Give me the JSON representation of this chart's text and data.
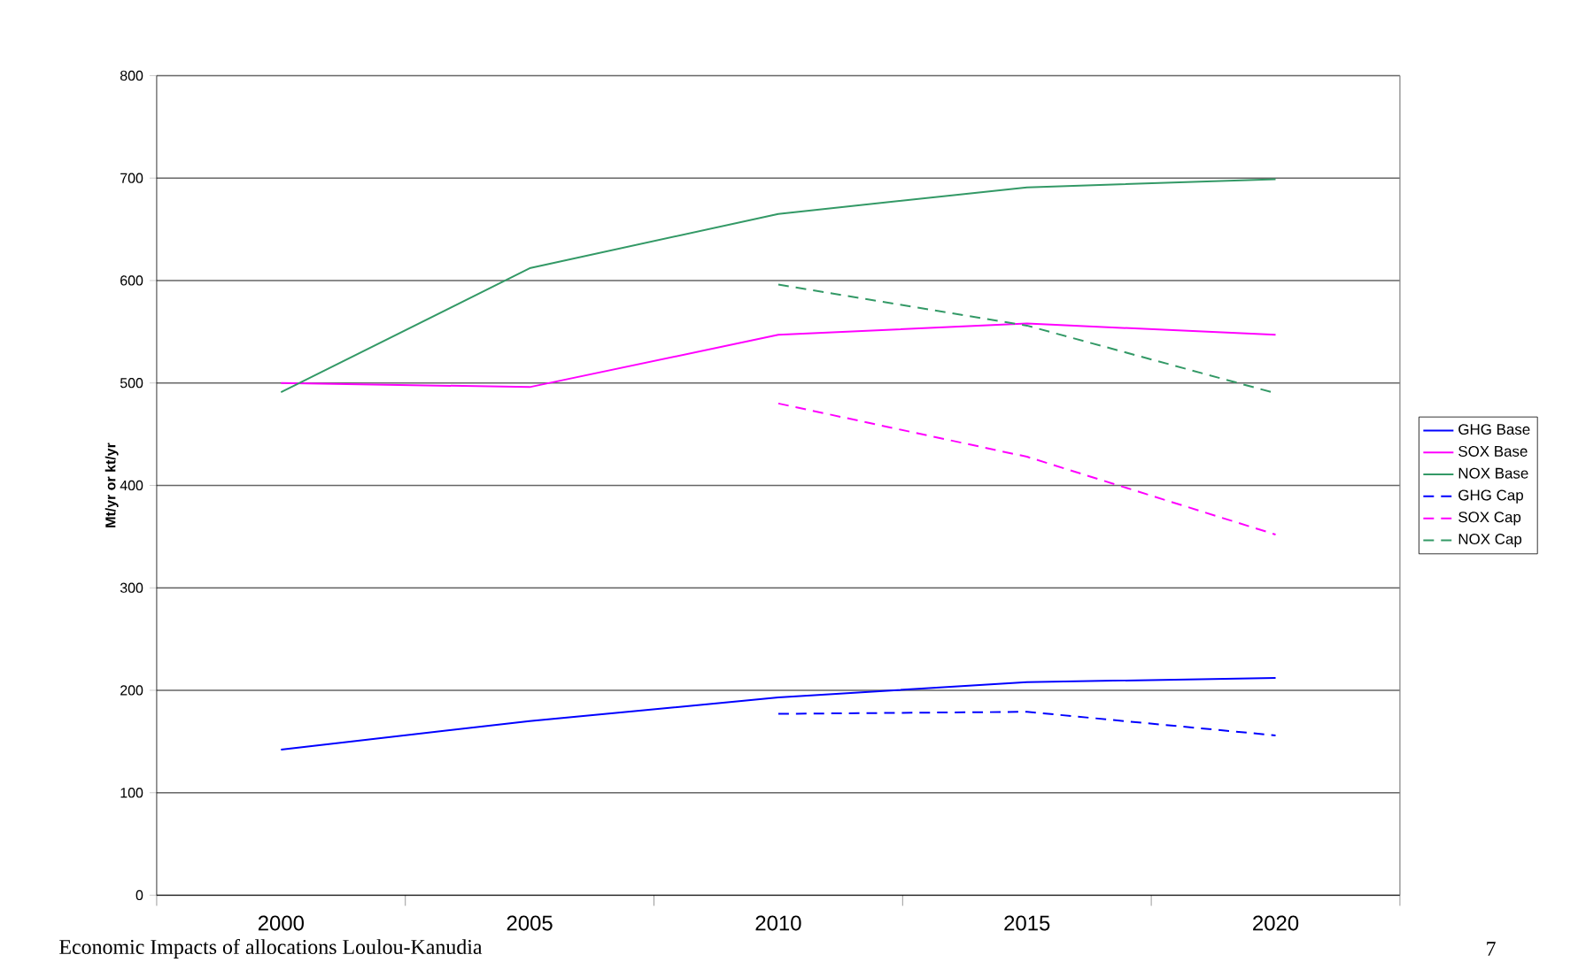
{
  "chart_data": {
    "type": "line",
    "ylabel": "Mt/yr or kt/yr",
    "categories": [
      "2000",
      "2005",
      "2010",
      "2015",
      "2020"
    ],
    "series": [
      {
        "name": "GHG Base",
        "color": "#0000ff",
        "line_style": "solid",
        "values": [
          142,
          170,
          193,
          208,
          212
        ]
      },
      {
        "name": "SOX Base",
        "color": "#ff00ff",
        "line_style": "solid",
        "values": [
          500,
          496,
          547,
          558,
          547
        ]
      },
      {
        "name": "NOX Base",
        "color": "#339966",
        "line_style": "solid",
        "values": [
          491,
          612,
          665,
          691,
          699
        ]
      },
      {
        "name": "GHG Cap",
        "color": "#0000ff",
        "line_style": "dashed",
        "values": [
          null,
          null,
          177,
          179,
          156
        ]
      },
      {
        "name": "SOX Cap",
        "color": "#ff00ff",
        "line_style": "dashed",
        "values": [
          null,
          null,
          480,
          428,
          352
        ]
      },
      {
        "name": "NOX Cap",
        "color": "#339966",
        "line_style": "dashed",
        "values": [
          null,
          null,
          596,
          556,
          490
        ]
      }
    ],
    "ylim": [
      0,
      800
    ],
    "yticks": [
      0,
      100,
      200,
      300,
      400,
      500,
      600,
      700,
      800
    ],
    "grid": "y",
    "legend": "right",
    "marker": "none",
    "annotations": [
      "Economic Impacts of allocations Loulou-Kanudia",
      "7"
    ]
  }
}
